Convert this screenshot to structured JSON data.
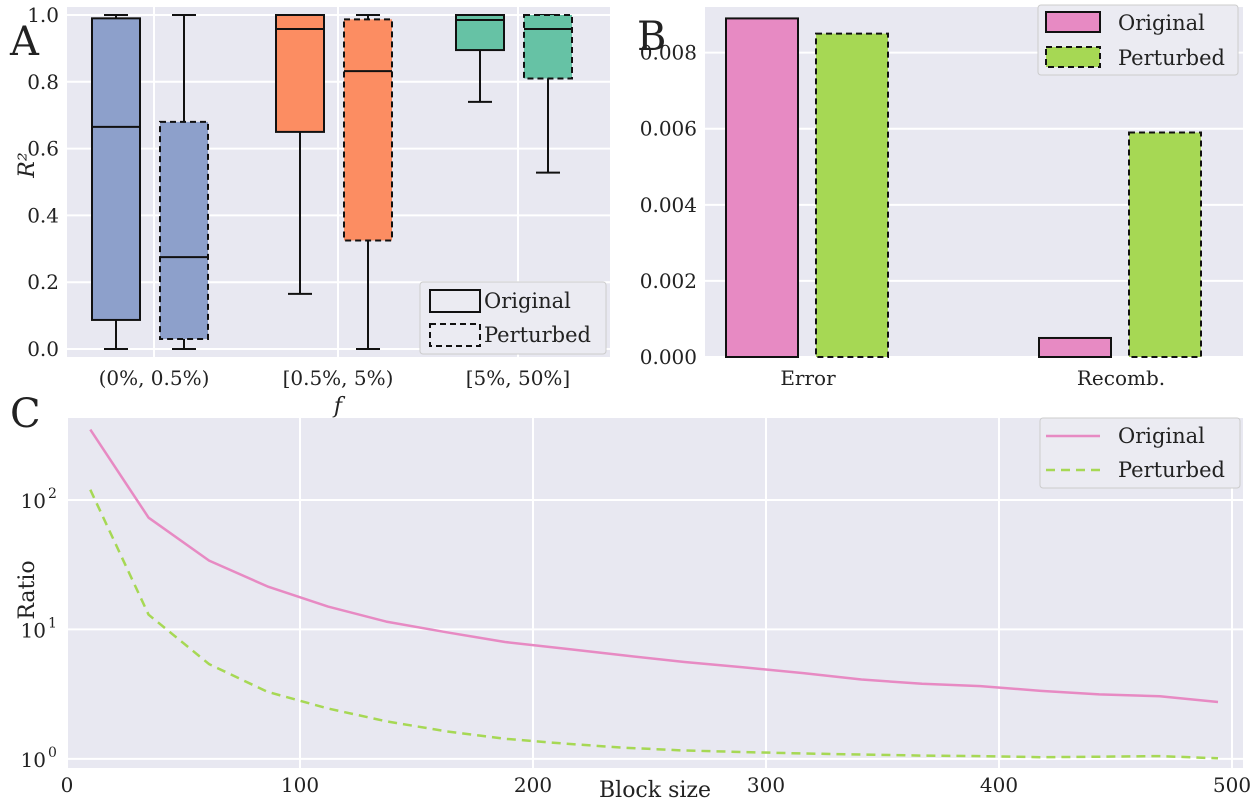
{
  "colors": {
    "background": "#e8e8f1",
    "grid": "#ffffff",
    "blue": "#8da0cb",
    "orange": "#fc8d62",
    "teal": "#66c2a5",
    "pink": "#e78ac3",
    "green": "#a6d854"
  },
  "chart_data": [
    {
      "panel": "A",
      "type": "box",
      "xlabel": "f",
      "ylabel": "R²",
      "ylim": [
        0,
        1
      ],
      "yticks": [
        "0.0",
        "0.2",
        "0.4",
        "0.6",
        "0.8",
        "1.0"
      ],
      "categories": [
        "(0%, 0.5%)",
        "[0.5%, 5%)",
        "[5%, 50%]"
      ],
      "legend": [
        "Original",
        "Perturbed"
      ],
      "legend_position": "lower-right",
      "series": [
        {
          "name": "Original",
          "style": "solid",
          "boxes": [
            {
              "whislo": 0.0,
              "q1": 0.087,
              "med": 0.665,
              "q3": 0.99,
              "whishi": 1.0
            },
            {
              "whislo": 0.165,
              "q1": 0.65,
              "med": 0.958,
              "q3": 1.0,
              "whishi": 1.0
            },
            {
              "whislo": 0.74,
              "q1": 0.895,
              "med": 0.985,
              "q3": 1.0,
              "whishi": 1.0
            }
          ]
        },
        {
          "name": "Perturbed",
          "style": "dashed",
          "boxes": [
            {
              "whislo": 0.0,
              "q1": 0.03,
              "med": 0.275,
              "q3": 0.68,
              "whishi": 1.0
            },
            {
              "whislo": 0.0,
              "q1": 0.325,
              "med": 0.832,
              "q3": 0.987,
              "whishi": 1.0
            },
            {
              "whislo": 0.528,
              "q1": 0.81,
              "med": 0.958,
              "q3": 1.0,
              "whishi": 1.0
            }
          ]
        }
      ]
    },
    {
      "panel": "B",
      "type": "bar",
      "categories": [
        "Error",
        "Recomb."
      ],
      "ylim": [
        0,
        0.0092
      ],
      "yticks": [
        "0.000",
        "0.002",
        "0.004",
        "0.006",
        "0.008"
      ],
      "legend": [
        "Original",
        "Perturbed"
      ],
      "legend_position": "top-right",
      "series": [
        {
          "name": "Original",
          "style": "solid",
          "values": [
            0.0089,
            0.0005
          ]
        },
        {
          "name": "Perturbed",
          "style": "dashed",
          "values": [
            0.0085,
            0.0059
          ]
        }
      ]
    },
    {
      "panel": "C",
      "type": "line",
      "xlabel": "Block size",
      "ylabel": "Ratio",
      "yscale": "log",
      "xlim": [
        0,
        500
      ],
      "xticks": [
        "0",
        "100",
        "200",
        "300",
        "400",
        "500"
      ],
      "ylim": [
        0.85,
        430
      ],
      "yticks": [
        "10",
        "10",
        "10"
      ],
      "yticks_exponents": [
        "0",
        "1",
        "2"
      ],
      "legend": [
        "Original",
        "Perturbed"
      ],
      "legend_position": "top-right",
      "x": [
        10,
        35,
        61,
        86,
        112,
        137,
        163,
        188,
        214,
        239,
        265,
        290,
        316,
        341,
        367,
        392,
        418,
        443,
        469,
        494
      ],
      "series": [
        {
          "name": "Original",
          "style": "solid",
          "values": [
            350,
            73,
            34,
            21.5,
            15,
            11.5,
            9.5,
            8.0,
            7.1,
            6.3,
            5.6,
            5.1,
            4.6,
            4.1,
            3.8,
            3.65,
            3.35,
            3.15,
            3.05,
            2.75
          ]
        },
        {
          "name": "Perturbed",
          "style": "dashed",
          "values": [
            120,
            13,
            5.4,
            3.3,
            2.45,
            1.95,
            1.63,
            1.43,
            1.31,
            1.22,
            1.16,
            1.13,
            1.1,
            1.08,
            1.06,
            1.05,
            1.03,
            1.04,
            1.05,
            1.01
          ]
        }
      ]
    }
  ]
}
